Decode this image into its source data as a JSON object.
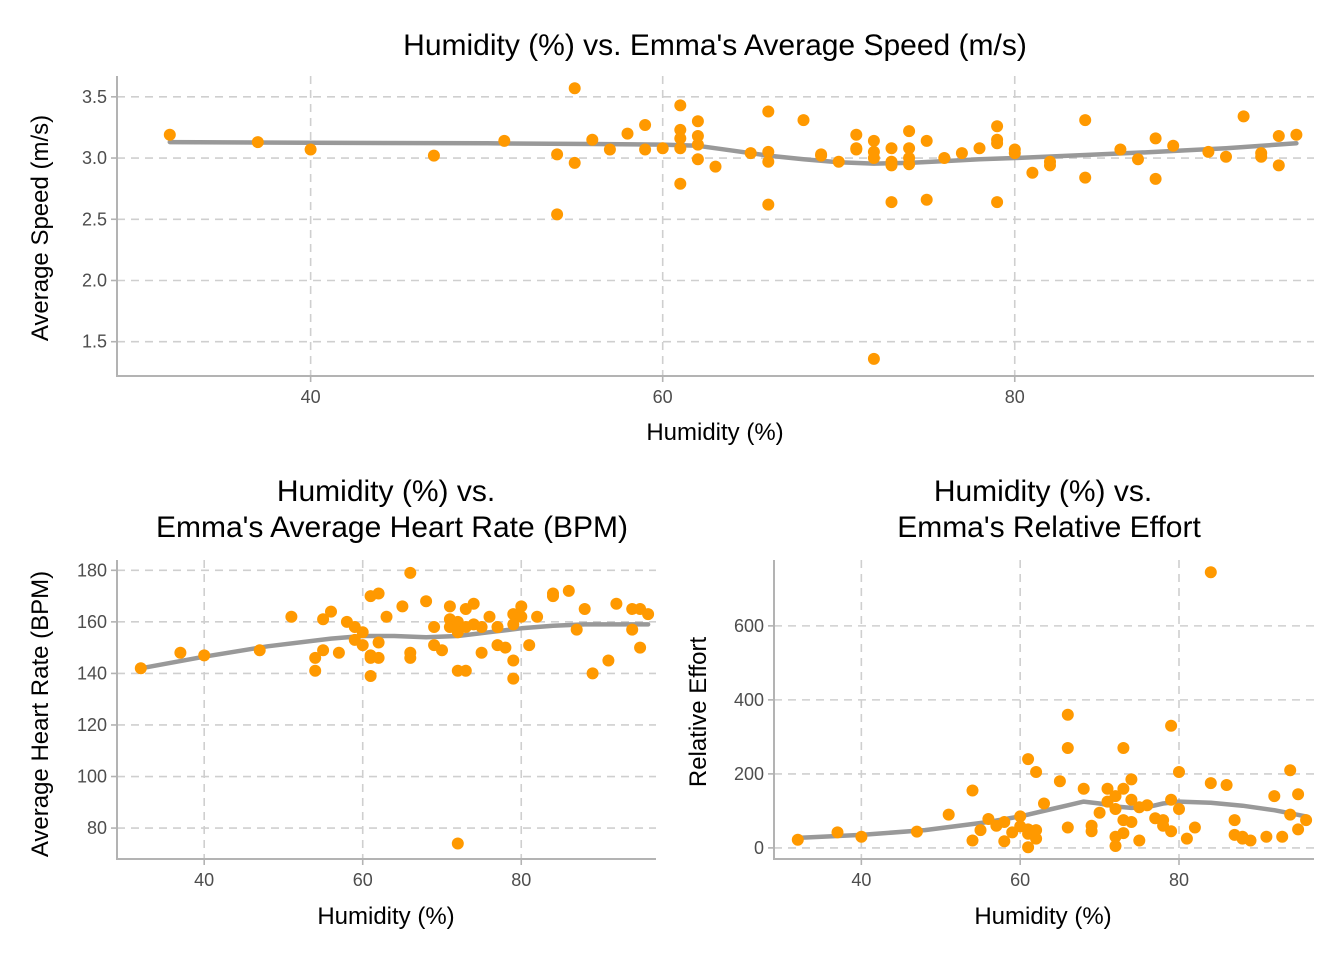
{
  "colors": {
    "points": "#FF9900",
    "smooth": "#999999"
  },
  "chart_data": [
    {
      "type": "scatter",
      "title": "Humidity (%) vs. Emma's Average Speed (m/s)",
      "xlabel": "Humidity (%)",
      "ylabel": "Average Speed (m/s)",
      "xlim": [
        29,
        97
      ],
      "ylim": [
        1.22,
        3.67
      ],
      "xticks": [
        40,
        60,
        80
      ],
      "yticks": [
        1.5,
        2.0,
        2.5,
        3.0,
        3.5
      ],
      "ytick_labels": [
        "1.5",
        "2.0",
        "2.5",
        "3.0",
        "3.5"
      ],
      "grid": true,
      "x": [
        32,
        37,
        40,
        47,
        51,
        54,
        54,
        55,
        55,
        56,
        57,
        58,
        59,
        59,
        60,
        61,
        61,
        61,
        61,
        61,
        62,
        62,
        62,
        62,
        63,
        65,
        66,
        66,
        66,
        66,
        68,
        69,
        69,
        70,
        71,
        71,
        71,
        72,
        72,
        72,
        72,
        73,
        73,
        73,
        73,
        74,
        74,
        74,
        74,
        75,
        75,
        76,
        77,
        78,
        79,
        79,
        79,
        79,
        80,
        80,
        81,
        82,
        82,
        84,
        84,
        86,
        87,
        88,
        88,
        89,
        91,
        92,
        93,
        94,
        94,
        95,
        95,
        96
      ],
      "y": [
        3.19,
        3.13,
        3.07,
        3.02,
        3.14,
        3.03,
        2.54,
        3.57,
        2.96,
        3.15,
        3.07,
        3.2,
        3.07,
        3.27,
        3.08,
        3.43,
        3.23,
        3.08,
        3.16,
        2.79,
        3.3,
        3.18,
        3.11,
        2.99,
        2.93,
        3.04,
        3.38,
        3.05,
        2.97,
        2.62,
        3.31,
        3.03,
        3.02,
        2.97,
        3.19,
        3.08,
        3.07,
        3.14,
        3.05,
        3.0,
        1.36,
        3.08,
        2.97,
        2.94,
        2.64,
        3.22,
        3.08,
        2.95,
        3.0,
        3.14,
        2.66,
        3.0,
        3.04,
        3.08,
        3.26,
        3.15,
        3.12,
        2.64,
        3.07,
        3.04,
        2.88,
        2.97,
        2.94,
        3.31,
        2.84,
        3.07,
        2.99,
        3.16,
        2.83,
        3.1,
        3.05,
        3.01,
        3.34,
        3.04,
        3.01,
        3.18,
        2.94,
        3.19
      ],
      "smooth": {
        "x": [
          32,
          40,
          50,
          56,
          60,
          62,
          64,
          66,
          68,
          70,
          72,
          74,
          76,
          78,
          80,
          84,
          88,
          92,
          96
        ],
        "y": [
          3.13,
          3.125,
          3.12,
          3.115,
          3.11,
          3.1,
          3.06,
          3.02,
          2.99,
          2.965,
          2.955,
          2.96,
          2.975,
          2.99,
          3.0,
          3.025,
          3.05,
          3.08,
          3.12
        ]
      }
    },
    {
      "type": "scatter",
      "title": [
        "Humidity (%) vs.",
        "Emma's Average Heart Rate (BPM)"
      ],
      "xlabel": "Humidity (%)",
      "ylabel": "Average Heart Rate (BPM)",
      "xlim": [
        29,
        97
      ],
      "ylim": [
        68,
        184
      ],
      "xticks": [
        40,
        60,
        80
      ],
      "yticks": [
        80,
        100,
        120,
        140,
        160,
        180
      ],
      "ytick_labels": [
        "80",
        "100",
        "120",
        "140",
        "160",
        "180"
      ],
      "grid": true,
      "x": [
        32,
        37,
        40,
        47,
        51,
        54,
        54,
        55,
        55,
        56,
        57,
        58,
        59,
        59,
        60,
        60,
        61,
        61,
        61,
        61,
        62,
        62,
        62,
        63,
        65,
        66,
        66,
        66,
        68,
        69,
        69,
        70,
        71,
        71,
        71,
        72,
        72,
        72,
        72,
        73,
        73,
        73,
        74,
        74,
        75,
        75,
        76,
        77,
        77,
        78,
        79,
        79,
        79,
        79,
        80,
        80,
        81,
        82,
        84,
        84,
        86,
        87,
        88,
        89,
        91,
        92,
        94,
        94,
        95,
        95,
        96
      ],
      "y": [
        142,
        148,
        147,
        149,
        162,
        146,
        141,
        161,
        149,
        164,
        148,
        160,
        158,
        153,
        156,
        151,
        170,
        147,
        146,
        139,
        171,
        146,
        152,
        162,
        166,
        179,
        148,
        146,
        168,
        158,
        151,
        149,
        166,
        161,
        158,
        141,
        160,
        156,
        74,
        165,
        158,
        141,
        167,
        159,
        158,
        148,
        162,
        151,
        158,
        150,
        163,
        159,
        145,
        138,
        166,
        162,
        151,
        162,
        170,
        171,
        172,
        157,
        165,
        140,
        145,
        167,
        165,
        157,
        165,
        150,
        163
      ],
      "smooth": {
        "x": [
          32,
          40,
          48,
          56,
          60,
          64,
          68,
          72,
          76,
          80,
          84,
          88,
          92,
          96
        ],
        "y": [
          142,
          146.5,
          150.5,
          153.5,
          154.5,
          154.5,
          154,
          154.5,
          156,
          157.5,
          158.5,
          159,
          159,
          159
        ]
      }
    },
    {
      "type": "scatter",
      "title": [
        "Humidity (%) vs.",
        "Emma's Relative Effort"
      ],
      "xlabel": "Humidity (%)",
      "ylabel": "Relative Effort",
      "xlim": [
        29,
        97
      ],
      "ylim": [
        -30,
        778
      ],
      "xticks": [
        40,
        60,
        80
      ],
      "yticks": [
        0,
        200,
        400,
        600
      ],
      "ytick_labels": [
        "0",
        "200",
        "400",
        "600"
      ],
      "grid": true,
      "x": [
        32,
        37,
        40,
        47,
        51,
        54,
        54,
        55,
        56,
        57,
        58,
        58,
        59,
        60,
        60,
        61,
        61,
        61,
        61,
        62,
        62,
        62,
        63,
        65,
        66,
        66,
        66,
        68,
        69,
        69,
        70,
        71,
        71,
        72,
        72,
        72,
        72,
        73,
        73,
        73,
        73,
        74,
        74,
        74,
        75,
        75,
        76,
        77,
        78,
        78,
        79,
        79,
        79,
        80,
        80,
        81,
        82,
        84,
        84,
        86,
        87,
        87,
        88,
        88,
        89,
        91,
        92,
        93,
        94,
        94,
        95,
        95,
        96
      ],
      "y": [
        22,
        42,
        30,
        44,
        90,
        155,
        20,
        48,
        78,
        60,
        70,
        18,
        42,
        58,
        85,
        240,
        50,
        2,
        38,
        205,
        48,
        25,
        120,
        180,
        360,
        270,
        55,
        160,
        60,
        45,
        95,
        160,
        125,
        140,
        105,
        30,
        5,
        270,
        160,
        75,
        40,
        185,
        70,
        130,
        110,
        20,
        115,
        80,
        75,
        60,
        330,
        130,
        45,
        205,
        105,
        25,
        55,
        745,
        175,
        170,
        35,
        75,
        30,
        25,
        20,
        30,
        140,
        30,
        210,
        90,
        50,
        145,
        75
      ],
      "smooth": {
        "x": [
          32,
          40,
          48,
          56,
          60,
          64,
          66,
          68,
          70,
          72,
          74,
          76,
          78,
          80,
          84,
          88,
          92,
          96
        ],
        "y": [
          27,
          35,
          48,
          70,
          85,
          105,
          115,
          125,
          120,
          112,
          108,
          110,
          120,
          125,
          122,
          114,
          102,
          85
        ]
      }
    }
  ]
}
